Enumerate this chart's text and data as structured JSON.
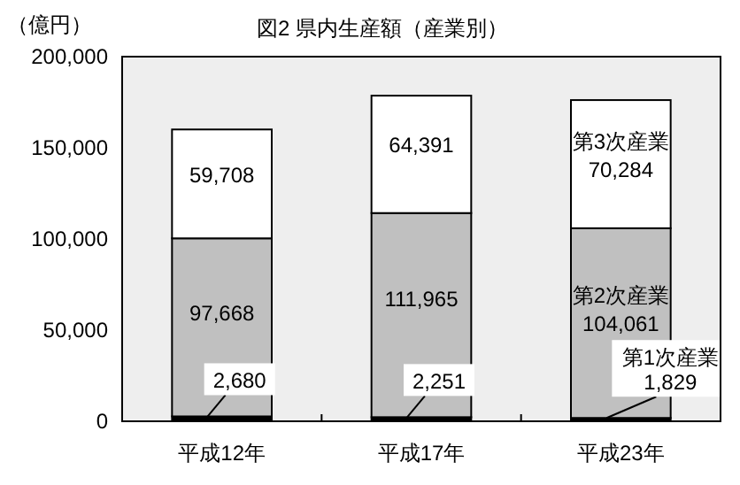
{
  "chart_data": {
    "type": "bar",
    "title": "図2 県内生産額（産業別）",
    "ylabel": "（億円）",
    "categories": [
      "平成12年",
      "平成17年",
      "平成23年"
    ],
    "stacked": true,
    "legend": false,
    "grid": false,
    "ylim": [
      0,
      200000
    ],
    "yticks": [
      0,
      {
        "value": 50000,
        "label": "50,000"
      },
      {
        "value": 100000,
        "label": "100,000"
      },
      {
        "value": 150000,
        "label": "150,000"
      },
      {
        "value": 200000,
        "label": "200,000"
      }
    ],
    "series": [
      {
        "name": "第1次産業",
        "color": "#000000",
        "values": [
          2680,
          2251,
          1829
        ],
        "value_labels": [
          "2,680",
          "2,251",
          "1,829"
        ]
      },
      {
        "name": "第2次産業",
        "color": "#c0c0c0",
        "values": [
          97668,
          111965,
          104061
        ],
        "value_labels": [
          "97,668",
          "111,965",
          "104,061"
        ]
      },
      {
        "name": "第3次産業",
        "color": "#ffffff",
        "values": [
          59708,
          64391,
          70284
        ],
        "value_labels": [
          "59,708",
          "64,391",
          "70,284"
        ]
      }
    ]
  }
}
